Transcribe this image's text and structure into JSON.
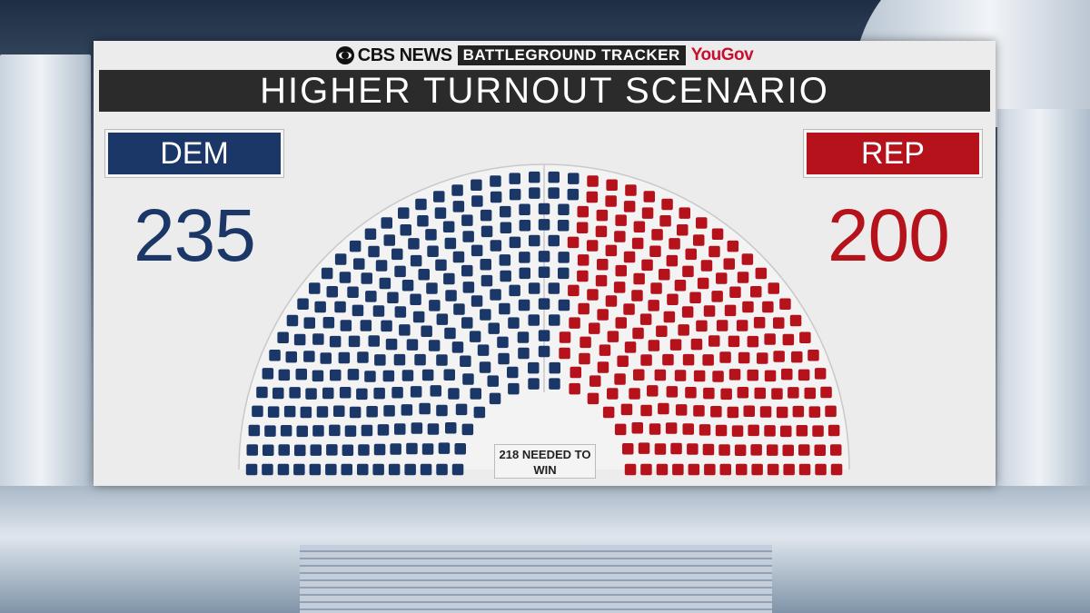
{
  "branding": {
    "network": "CBS NEWS",
    "program": "BATTLEGROUND TRACKER",
    "partner": "YouGov"
  },
  "chart_data": {
    "type": "hemicycle",
    "title": "HIGHER TURNOUT SCENARIO",
    "total_seats": 435,
    "majority_label": "218 NEEDED TO WIN",
    "series": [
      {
        "name": "DEM",
        "value": 235,
        "color": "#1a3768"
      },
      {
        "name": "REP",
        "value": 200,
        "color": "#b5121b"
      }
    ]
  }
}
